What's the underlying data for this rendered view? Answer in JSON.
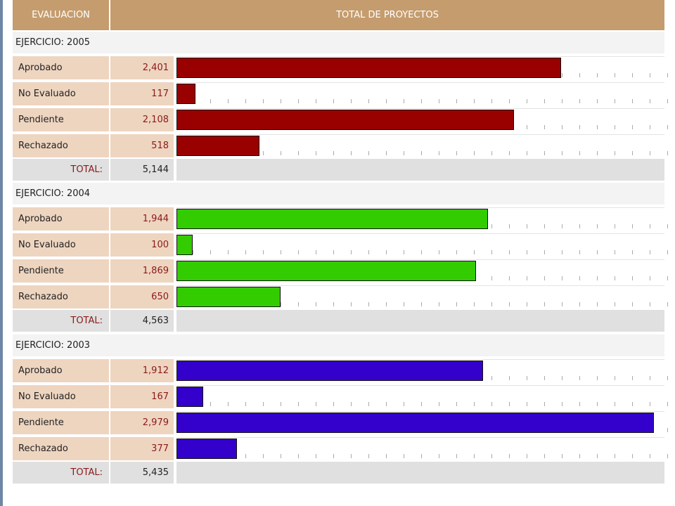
{
  "table": {
    "col_evaluacion": "EVALUACION",
    "col_total": "TOTAL DE PROYECTOS",
    "total_label": "TOTAL:"
  },
  "chart_data": {
    "type": "bar",
    "orientation": "horizontal",
    "xlim": [
      0,
      2979
    ],
    "categories": [
      "Aprobado",
      "No Evaluado",
      "Pendiente",
      "Rechazado"
    ],
    "groups": [
      {
        "heading": "EJERCICIO: 2005",
        "color": "#990000",
        "values": [
          2401,
          117,
          2108,
          518
        ],
        "labels": [
          "2,401",
          "117",
          "2,108",
          "518"
        ],
        "total": "5,144"
      },
      {
        "heading": "EJERCICIO: 2004",
        "color": "#33cc00",
        "values": [
          1944,
          100,
          1869,
          650
        ],
        "labels": [
          "1,944",
          "100",
          "1,869",
          "650"
        ],
        "total": "4,563"
      },
      {
        "heading": "EJERCICIO: 2003",
        "color": "#3300cc",
        "values": [
          1912,
          167,
          2979,
          377
        ],
        "labels": [
          "1,912",
          "167",
          "2,979",
          "377"
        ],
        "total": "5,435"
      }
    ]
  }
}
